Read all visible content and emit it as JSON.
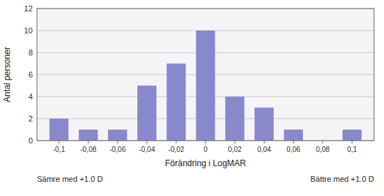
{
  "chart_data": {
    "type": "bar",
    "x": [
      -0.1,
      -0.08,
      -0.06,
      -0.04,
      -0.02,
      0,
      0.02,
      0.04,
      0.06,
      0.08,
      0.1
    ],
    "values": [
      2,
      1,
      1,
      5,
      7,
      10,
      4,
      3,
      1,
      0,
      1
    ],
    "color": "#8888cc",
    "xlabel": "Förändring i LogMAR",
    "ylabel": "Antal personer",
    "xlim": [
      -0.115,
      0.115
    ],
    "xticks": [
      {
        "value": -0.1,
        "label": "-0,1"
      },
      {
        "value": -0.08,
        "label": "-0,08"
      },
      {
        "value": -0.06,
        "label": "-0,06"
      },
      {
        "value": -0.04,
        "label": "-0,04"
      },
      {
        "value": -0.02,
        "label": "-0,02"
      },
      {
        "value": 0,
        "label": "0"
      },
      {
        "value": 0.02,
        "label": "0,02"
      },
      {
        "value": 0.04,
        "label": "0,04"
      },
      {
        "value": 0.06,
        "label": "0,06"
      },
      {
        "value": 0.08,
        "label": "0,08"
      },
      {
        "value": 0.1,
        "label": "0,1"
      }
    ],
    "ylim": [
      0,
      12
    ],
    "yticks": [
      0,
      2,
      4,
      6,
      8,
      10,
      12
    ],
    "grid": true,
    "annotations": [
      "Sämre med +1.0 D",
      "Bättre med +1.0 D"
    ]
  }
}
